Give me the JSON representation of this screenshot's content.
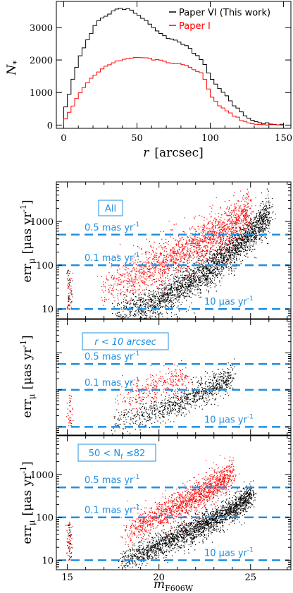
{
  "chart_data": [
    {
      "type": "line",
      "panel": "radial-histogram",
      "xlabel": "r",
      "xlabel_unit": "[arcsec]",
      "ylabel": "N",
      "ylabel_sub": "*",
      "xlim": [
        -5,
        155
      ],
      "ylim": [
        -100,
        3800
      ],
      "xticks": [
        0,
        50,
        100,
        150
      ],
      "yticks": [
        0,
        1000,
        2000,
        3000
      ],
      "legend_position": "top-right",
      "bin_width": 2.5,
      "series": [
        {
          "name": "Paper VI (This work)",
          "color": "#000000",
          "x": [
            0,
            5,
            10,
            15,
            20,
            25,
            30,
            35,
            40,
            45,
            50,
            55,
            60,
            65,
            70,
            75,
            80,
            85,
            90,
            95,
            100,
            105,
            110,
            115,
            120,
            125,
            130,
            135,
            140,
            145,
            150
          ],
          "y": [
            250,
            1200,
            2000,
            2500,
            2950,
            3250,
            3420,
            3520,
            3560,
            3550,
            3420,
            3250,
            3050,
            2850,
            2700,
            2600,
            2520,
            2400,
            2200,
            1950,
            1500,
            1150,
            950,
            700,
            450,
            250,
            130,
            60,
            25,
            8,
            0
          ]
        },
        {
          "name": "Paper I",
          "color": "#ff0000",
          "x": [
            0,
            5,
            10,
            15,
            20,
            25,
            30,
            35,
            40,
            45,
            50,
            55,
            60,
            65,
            70,
            75,
            80,
            85,
            90,
            95,
            100,
            105,
            110,
            115,
            120,
            125,
            130,
            135,
            140,
            145,
            150
          ],
          "y": [
            70,
            480,
            900,
            1250,
            1500,
            1700,
            1850,
            1950,
            2020,
            2070,
            2070,
            2050,
            2030,
            1990,
            1950,
            1900,
            1860,
            1800,
            1700,
            1580,
            950,
            650,
            480,
            330,
            190,
            90,
            40,
            15,
            5,
            0,
            0
          ]
        }
      ]
    },
    {
      "type": "scatter",
      "panel": "all-stars",
      "label": "All",
      "ylabel": "err",
      "ylabel_sub": "μ",
      "ylabel_unit": "[μas yr",
      "ylabel_unit_sup": "-1",
      "ylabel_unit_close": "]",
      "yscale": "log",
      "xlim": [
        14.4,
        27.2
      ],
      "ylim": [
        6,
        8000
      ],
      "xticks": [
        15,
        20,
        25
      ],
      "yticks": [
        10,
        100,
        1000
      ],
      "ytick_labels": [
        "10",
        "100",
        "1000"
      ],
      "reference_lines": [
        {
          "y": 500,
          "label": "0.5 mas yr",
          "sup": "-1"
        },
        {
          "y": 100,
          "label": "0.1 mas yr",
          "sup": "-1"
        },
        {
          "y": 10,
          "label": "10 μas yr",
          "sup": "-1"
        }
      ],
      "series": [
        {
          "name": "Paper VI",
          "color": "#000000",
          "trend": [
            [
              17.5,
              8
            ],
            [
              19,
              11
            ],
            [
              20,
              16
            ],
            [
              21,
              27
            ],
            [
              22,
              50
            ],
            [
              23,
              100
            ],
            [
              24,
              220
            ],
            [
              25,
              550
            ],
            [
              26,
              1500
            ]
          ],
          "scatter_dex": 0.22
        },
        {
          "name": "Paper I",
          "color": "#ff0000",
          "trend": [
            [
              16.8,
              25
            ],
            [
              18,
              45
            ],
            [
              19,
              70
            ],
            [
              20,
              110
            ],
            [
              21,
              180
            ],
            [
              22,
              300
            ],
            [
              23,
              500
            ],
            [
              24,
              900
            ],
            [
              25,
              1700
            ]
          ],
          "scatter_dex": 0.28
        }
      ]
    },
    {
      "type": "scatter",
      "panel": "inner-radius",
      "label": "r < 10 arcsec",
      "ylabel": "err",
      "ylabel_sub": "μ",
      "ylabel_unit": "[μas yr",
      "ylabel_unit_sup": "-1",
      "ylabel_unit_close": "]",
      "yscale": "log",
      "xlim": [
        14.4,
        27.2
      ],
      "ylim": [
        6,
        8000
      ],
      "xticks": [
        15,
        20,
        25
      ],
      "yticks": [
        10,
        100,
        1000
      ],
      "ytick_labels": [],
      "reference_lines": [
        {
          "y": 500,
          "label": "0.5 mas yr",
          "sup": "-1"
        },
        {
          "y": 100,
          "label": "0.1 mas yr",
          "sup": "-1"
        },
        {
          "y": 10,
          "label": "10 μas yr",
          "sup": "-1"
        }
      ],
      "series": [
        {
          "name": "Paper VI",
          "color": "#000000",
          "trend": [
            [
              17.5,
              12
            ],
            [
              19,
              20
            ],
            [
              20,
              28
            ],
            [
              21,
              45
            ],
            [
              22,
              75
            ],
            [
              23,
              130
            ],
            [
              24,
              250
            ]
          ],
          "scatter_dex": 0.2
        },
        {
          "name": "Paper I",
          "color": "#ff0000",
          "trend": [
            [
              17.5,
              40
            ],
            [
              18.5,
              70
            ],
            [
              19.5,
              110
            ],
            [
              20.5,
              160
            ],
            [
              21.5,
              230
            ]
          ],
          "scatter_dex": 0.25
        }
      ]
    },
    {
      "type": "scatter",
      "panel": "detections",
      "label": "50 < N",
      "label_sub": "f",
      "label_tail": " ≤82",
      "xlabel": "m",
      "xlabel_sub": "F606W",
      "ylabel": "err",
      "ylabel_sub": "μ",
      "ylabel_unit": "[μas yr",
      "ylabel_unit_sup": "-1",
      "ylabel_unit_close": "]",
      "yscale": "log",
      "xlim": [
        14.4,
        27.2
      ],
      "ylim": [
        6,
        8000
      ],
      "xticks": [
        15,
        20,
        25
      ],
      "yticks": [
        10,
        100,
        1000
      ],
      "ytick_labels": [
        "10",
        "100",
        "1000"
      ],
      "reference_lines": [
        {
          "y": 500,
          "label": "0.5 mas yr",
          "sup": "-1"
        },
        {
          "y": 100,
          "label": "0.1 mas yr",
          "sup": "-1"
        },
        {
          "y": 10,
          "label": "10 μas yr",
          "sup": "-1"
        }
      ],
      "series": [
        {
          "name": "Paper VI",
          "color": "#000000",
          "trend": [
            [
              17.8,
              9
            ],
            [
              19,
              14
            ],
            [
              20,
              22
            ],
            [
              21,
              35
            ],
            [
              22,
              55
            ],
            [
              23,
              90
            ],
            [
              24,
              160
            ],
            [
              25,
              320
            ]
          ],
          "scatter_dex": 0.16
        },
        {
          "name": "Paper I",
          "color": "#ff0000",
          "trend": [
            [
              18,
              45
            ],
            [
              19,
              70
            ],
            [
              20,
              110
            ],
            [
              21,
              180
            ],
            [
              22,
              300
            ],
            [
              23,
              550
            ],
            [
              24,
              1100
            ]
          ],
          "scatter_dex": 0.2
        }
      ]
    }
  ]
}
